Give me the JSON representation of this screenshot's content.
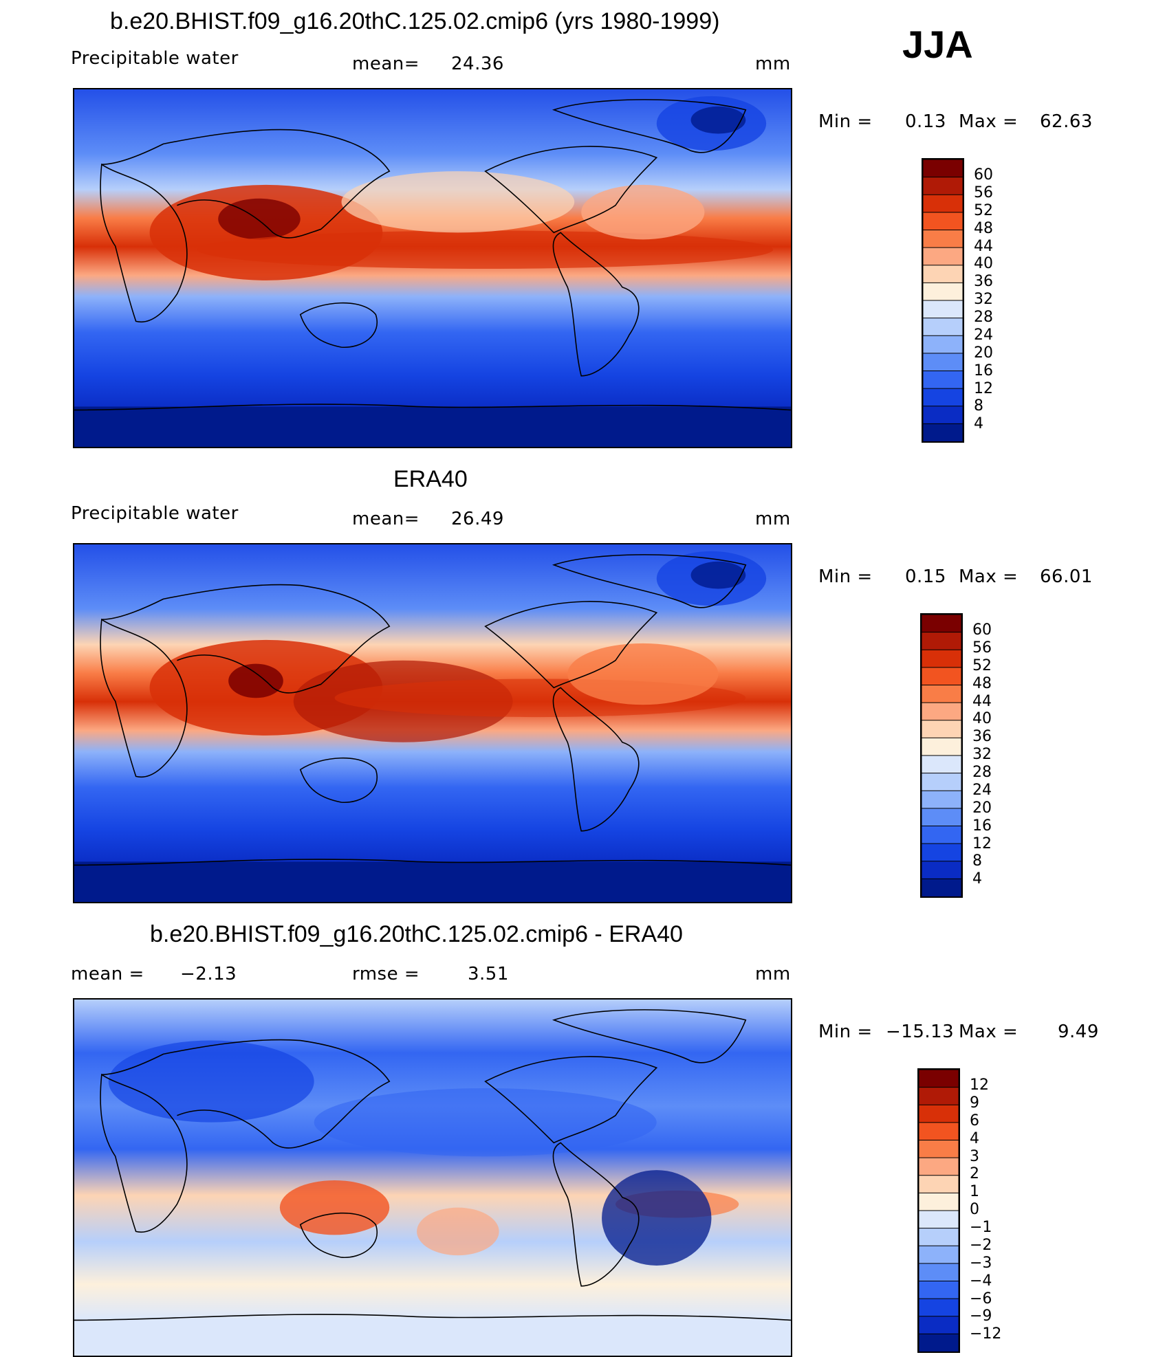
{
  "season": "JJA",
  "units": "mm",
  "panels": [
    {
      "title": "b.e20.BHIST.f09_g16.20thC.125.02.cmip6 (yrs 1980-1999)",
      "variable": "Precipitable water",
      "mean_label": "mean=",
      "mean_value": "24.36",
      "min_label": "Min  =",
      "min_value": "0.13",
      "max_label": "Max  =",
      "max_value": "62.63",
      "legend_labels": [
        "60",
        "56",
        "52",
        "48",
        "44",
        "40",
        "36",
        "32",
        "28",
        "24",
        "20",
        "16",
        "12",
        "8",
        "4"
      ],
      "legend_colors": [
        "#7a0000",
        "#b01a06",
        "#d83008",
        "#f25420",
        "#f97d47",
        "#fca882",
        "#fdd4b4",
        "#fdf0dc",
        "#dbe7fb",
        "#b6cffb",
        "#8db2fa",
        "#5d8df7",
        "#3366f2",
        "#1544e2",
        "#0a2cc4",
        "#001a8c"
      ],
      "tail_label": "4",
      "map_data": {
        "type": "contour-map",
        "projection": "cylindrical-equidistant",
        "color_scale": [
          {
            "value": 60,
            "color": "#7a0000"
          },
          {
            "value": 4,
            "color": "#001a8c"
          }
        ],
        "features": [
          "tropical maximum over Indian monsoon and warm pool",
          "dry polar regions"
        ]
      }
    },
    {
      "title": "ERA40",
      "variable": "Precipitable water",
      "mean_label": "mean=",
      "mean_value": "26.49",
      "min_label": "Min  =",
      "min_value": "0.15",
      "max_label": "Max  =",
      "max_value": "66.01",
      "legend_labels": [
        "60",
        "56",
        "52",
        "48",
        "44",
        "40",
        "36",
        "32",
        "28",
        "24",
        "20",
        "16",
        "12",
        "8",
        "4"
      ],
      "legend_colors": [
        "#7a0000",
        "#b01a06",
        "#d83008",
        "#f25420",
        "#f97d47",
        "#fca882",
        "#fdd4b4",
        "#fdf0dc",
        "#dbe7fb",
        "#b6cffb",
        "#8db2fa",
        "#5d8df7",
        "#3366f2",
        "#1544e2",
        "#0a2cc4",
        "#001a8c"
      ],
      "map_data": {
        "type": "contour-map",
        "projection": "cylindrical-equidistant"
      }
    },
    {
      "title": "b.e20.BHIST.f09_g16.20thC.125.02.cmip6 - ERA40",
      "mean_label": "mean =",
      "mean_value": "−2.13",
      "rmse_label": "rmse =",
      "rmse_value": "3.51",
      "min_label": "Min  =",
      "min_value": "−15.13",
      "max_label": "Max  =",
      "max_value": "9.49",
      "legend_labels": [
        "12",
        "9",
        "6",
        "4",
        "3",
        "2",
        "1",
        "0",
        "−1",
        "−2",
        "−3",
        "−4",
        "−6",
        "−9",
        "−12"
      ],
      "legend_colors": [
        "#7a0000",
        "#b01a06",
        "#d83008",
        "#f25420",
        "#f97d47",
        "#fca882",
        "#fdd4b4",
        "#fdf0dc",
        "#dbe7fb",
        "#b6cffb",
        "#8db2fa",
        "#5d8df7",
        "#3366f2",
        "#1544e2",
        "#0a2cc4",
        "#001a8c"
      ],
      "map_data": {
        "type": "contour-map",
        "projection": "cylindrical-equidistant"
      }
    }
  ]
}
